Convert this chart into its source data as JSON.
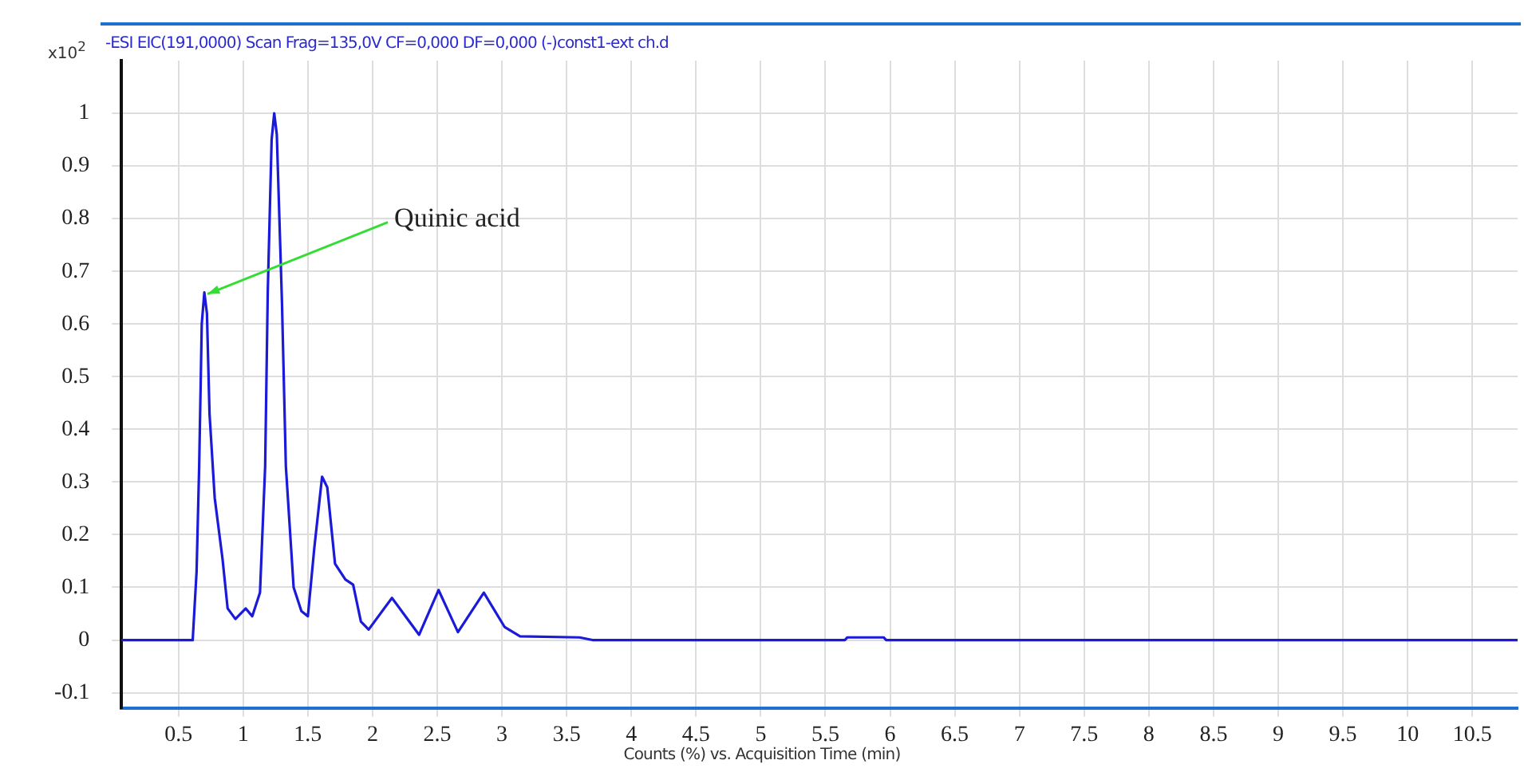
{
  "chart_data": {
    "type": "line",
    "title": "-ESI EIC(191,0000) Scan Frag=135,0V CF=0,000 DF=0,000 (-)const1-ext ch.d",
    "xlabel": "Counts (%) vs. Acquisition Time (min)",
    "ylabel": "x10$^{2}$",
    "annotations": [
      {
        "text": "Quinic acid",
        "x": 0.7,
        "y": 0.66
      }
    ],
    "series": [
      {
        "color": "#1a1ad8",
        "x": [
          0.06,
          0.61,
          0.64,
          0.66,
          0.68,
          0.7,
          0.72,
          0.74,
          0.78,
          0.84,
          0.88,
          0.94,
          1.02,
          1.07,
          1.13,
          1.17,
          1.19,
          1.22,
          1.24,
          1.26,
          1.3,
          1.33,
          1.39,
          1.45,
          1.5,
          1.55,
          1.61,
          1.65,
          1.71,
          1.79,
          1.85,
          1.91,
          1.97,
          2.15,
          2.36,
          2.51,
          2.66,
          2.86,
          3.02,
          3.14,
          3.6,
          3.7,
          5.65,
          5.67,
          5.95,
          5.97,
          10.85
        ],
        "values": [
          0,
          0,
          0.13,
          0.33,
          0.6,
          0.66,
          0.62,
          0.43,
          0.27,
          0.155,
          0.06,
          0.04,
          0.06,
          0.045,
          0.09,
          0.33,
          0.66,
          0.95,
          1.0,
          0.96,
          0.64,
          0.33,
          0.1,
          0.055,
          0.045,
          0.175,
          0.31,
          0.29,
          0.145,
          0.115,
          0.105,
          0.035,
          0.02,
          0.08,
          0.01,
          0.095,
          0.015,
          0.09,
          0.025,
          0.007,
          0.005,
          0,
          0,
          0.005,
          0.005,
          0,
          0
        ]
      }
    ],
    "xlim": [
      0.06,
      10.85
    ],
    "ylim": [
      -0.13,
      1.1
    ],
    "xticks": [
      0.5,
      1,
      1.5,
      2,
      2.5,
      3,
      3.5,
      4,
      4.5,
      5,
      5.5,
      6,
      6.5,
      7,
      7.5,
      8,
      8.5,
      9,
      9.5,
      10,
      10.5
    ],
    "yticks": [
      -0.1,
      0,
      0.1,
      0.2,
      0.3,
      0.4,
      0.5,
      0.6,
      0.7,
      0.8,
      0.9,
      1
    ],
    "grid": true,
    "legend": false,
    "marker": "none",
    "line_style": "solid"
  }
}
